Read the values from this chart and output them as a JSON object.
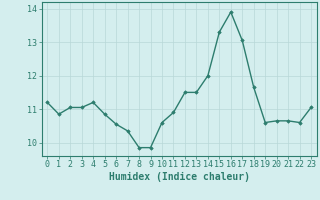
{
  "x": [
    0,
    1,
    2,
    3,
    4,
    5,
    6,
    7,
    8,
    9,
    10,
    11,
    12,
    13,
    14,
    15,
    16,
    17,
    18,
    19,
    20,
    21,
    22,
    23
  ],
  "y": [
    11.2,
    10.85,
    11.05,
    11.05,
    11.2,
    10.85,
    10.55,
    10.35,
    9.85,
    9.85,
    10.6,
    10.9,
    11.5,
    11.5,
    12.0,
    13.3,
    13.9,
    13.05,
    11.65,
    10.6,
    10.65,
    10.65,
    10.6,
    11.05
  ],
  "line_color": "#2d7d6e",
  "marker": "D",
  "markersize": 1.8,
  "linewidth": 1.0,
  "xlabel": "Humidex (Indice chaleur)",
  "xlabel_fontsize": 7,
  "xlim": [
    -0.5,
    23.5
  ],
  "ylim": [
    9.6,
    14.2
  ],
  "yticks": [
    10,
    11,
    12,
    13,
    14
  ],
  "xticks": [
    0,
    1,
    2,
    3,
    4,
    5,
    6,
    7,
    8,
    9,
    10,
    11,
    12,
    13,
    14,
    15,
    16,
    17,
    18,
    19,
    20,
    21,
    22,
    23
  ],
  "background_color": "#d4eeee",
  "grid_color": "#b8d8d8",
  "tick_fontsize": 6,
  "spine_color": "#2d7d6e"
}
